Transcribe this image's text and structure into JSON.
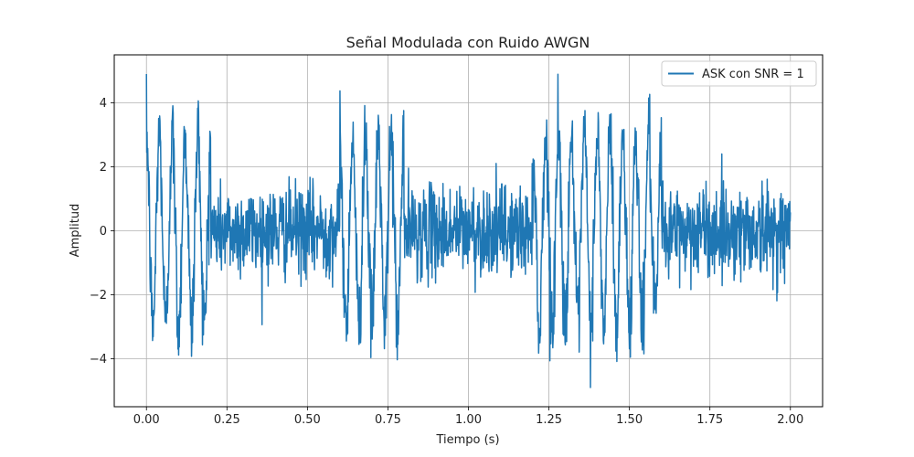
{
  "chart_data": {
    "type": "line",
    "title": "Señal Modulada con Ruido AWGN",
    "xlabel": "Tiempo (s)",
    "ylabel": "Amplitud",
    "xlim": [
      -0.1,
      2.1
    ],
    "ylim": [
      -5.5,
      5.5
    ],
    "xticks": [
      0.0,
      0.25,
      0.5,
      0.75,
      1.0,
      1.25,
      1.5,
      1.75,
      2.0
    ],
    "xtick_labels": [
      "0.00",
      "0.25",
      "0.50",
      "0.75",
      "1.00",
      "1.25",
      "1.50",
      "1.75",
      "2.00"
    ],
    "yticks": [
      -4,
      -2,
      0,
      2,
      4
    ],
    "ytick_labels": [
      "−4",
      "−2",
      "0",
      "2",
      "4"
    ],
    "grid": true,
    "legend_position": "top-right",
    "series": [
      {
        "name": "ASK con SNR = 1",
        "color": "#1f77b4",
        "x_range": [
          0,
          2
        ],
        "bit_duration": 0.2,
        "bits": [
          1,
          0,
          0,
          1,
          0,
          0,
          1,
          1,
          0,
          0
        ],
        "carrier_amplitude": 3.0,
        "carrier_frequency_hz": 25,
        "noise_std": 0.7
      }
    ]
  }
}
